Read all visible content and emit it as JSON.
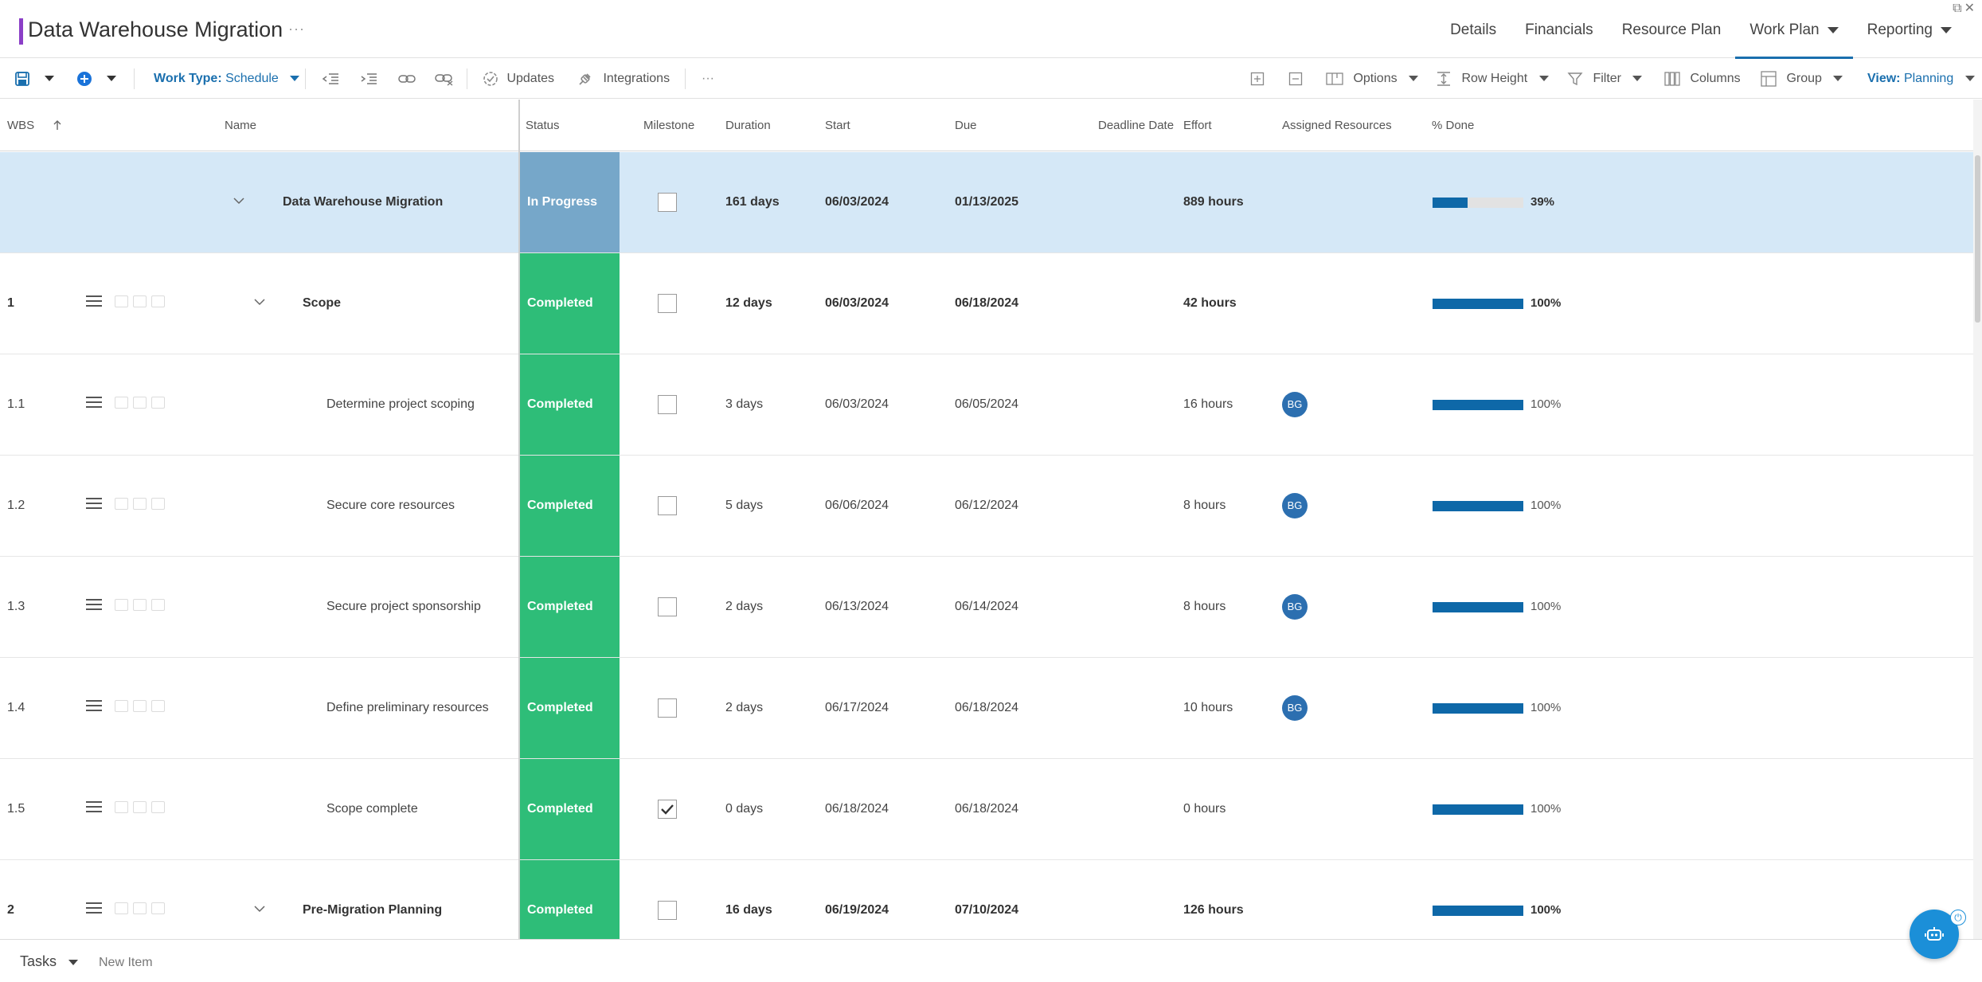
{
  "header": {
    "title": "Data Warehouse Migration",
    "title_more": "···",
    "accent_color": "#8b3fc7",
    "nav": [
      {
        "label": "Details",
        "active": false,
        "has_dropdown": false
      },
      {
        "label": "Financials",
        "active": false,
        "has_dropdown": false
      },
      {
        "label": "Resource Plan",
        "active": false,
        "has_dropdown": false
      },
      {
        "label": "Work Plan",
        "active": true,
        "has_dropdown": true
      },
      {
        "label": "Reporting",
        "active": false,
        "has_dropdown": true
      }
    ]
  },
  "toolbar": {
    "work_type_label": "Work Type:",
    "work_type_value": "Schedule",
    "updates_label": "Updates",
    "integrations_label": "Integrations",
    "more_label": "···",
    "options_label": "Options",
    "row_height_label": "Row Height",
    "filter_label": "Filter",
    "columns_label": "Columns",
    "group_label": "Group",
    "view_label": "View:",
    "view_value": "Planning"
  },
  "columns": {
    "wbs": "WBS",
    "name": "Name",
    "status": "Status",
    "milestone": "Milestone",
    "duration": "Duration",
    "start": "Start",
    "due": "Due",
    "deadline": "Deadline Date",
    "effort": "Effort",
    "resources": "Assigned Resources",
    "pct_done": "% Done"
  },
  "status_colors": {
    "In Progress": "#76a7c9",
    "Completed": "#2ebd78"
  },
  "rows": [
    {
      "wbs": "",
      "name": "Data Warehouse Migration",
      "status": "In Progress",
      "milestone": false,
      "duration": "161 days",
      "start": "06/03/2024",
      "due": "01/13/2025",
      "deadline": "",
      "effort": "889 hours",
      "resource": "",
      "pct": 39,
      "pct_label": "39%",
      "level": 0,
      "bold": true,
      "expandable": true
    },
    {
      "wbs": "1",
      "name": "Scope",
      "status": "Completed",
      "milestone": false,
      "duration": "12 days",
      "start": "06/03/2024",
      "due": "06/18/2024",
      "deadline": "",
      "effort": "42 hours",
      "resource": "",
      "pct": 100,
      "pct_label": "100%",
      "level": 1,
      "bold": true,
      "expandable": true
    },
    {
      "wbs": "1.1",
      "name": "Determine project scoping",
      "status": "Completed",
      "milestone": false,
      "duration": "3 days",
      "start": "06/03/2024",
      "due": "06/05/2024",
      "deadline": "",
      "effort": "16 hours",
      "resource": "BG",
      "pct": 100,
      "pct_label": "100%",
      "level": 2,
      "bold": false,
      "expandable": false
    },
    {
      "wbs": "1.2",
      "name": "Secure core resources",
      "status": "Completed",
      "milestone": false,
      "duration": "5 days",
      "start": "06/06/2024",
      "due": "06/12/2024",
      "deadline": "",
      "effort": "8 hours",
      "resource": "BG",
      "pct": 100,
      "pct_label": "100%",
      "level": 2,
      "bold": false,
      "expandable": false
    },
    {
      "wbs": "1.3",
      "name": "Secure project sponsorship",
      "status": "Completed",
      "milestone": false,
      "duration": "2 days",
      "start": "06/13/2024",
      "due": "06/14/2024",
      "deadline": "",
      "effort": "8 hours",
      "resource": "BG",
      "pct": 100,
      "pct_label": "100%",
      "level": 2,
      "bold": false,
      "expandable": false
    },
    {
      "wbs": "1.4",
      "name": "Define preliminary resources",
      "status": "Completed",
      "milestone": false,
      "duration": "2 days",
      "start": "06/17/2024",
      "due": "06/18/2024",
      "deadline": "",
      "effort": "10 hours",
      "resource": "BG",
      "pct": 100,
      "pct_label": "100%",
      "level": 2,
      "bold": false,
      "expandable": false
    },
    {
      "wbs": "1.5",
      "name": "Scope complete",
      "status": "Completed",
      "milestone": true,
      "duration": "0 days",
      "start": "06/18/2024",
      "due": "06/18/2024",
      "deadline": "",
      "effort": "0 hours",
      "resource": "",
      "pct": 100,
      "pct_label": "100%",
      "level": 2,
      "bold": false,
      "expandable": false
    },
    {
      "wbs": "2",
      "name": "Pre-Migration Planning",
      "status": "Completed",
      "milestone": false,
      "duration": "16 days",
      "start": "06/19/2024",
      "due": "07/10/2024",
      "deadline": "",
      "effort": "126 hours",
      "resource": "",
      "pct": 100,
      "pct_label": "100%",
      "level": 1,
      "bold": true,
      "expandable": true
    }
  ],
  "footer": {
    "tasks_label": "Tasks",
    "new_item_placeholder": "New Item"
  }
}
